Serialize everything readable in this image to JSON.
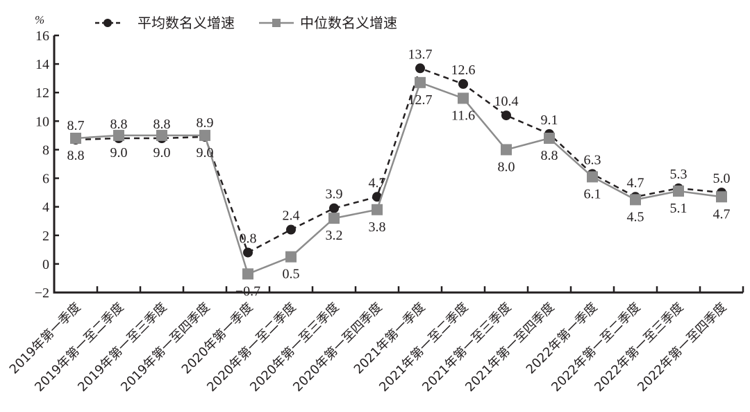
{
  "chart_data": {
    "type": "line",
    "title": "",
    "xlabel": "",
    "ylabel": "%",
    "ylim": [
      -2,
      16
    ],
    "yticks": [
      -2,
      0,
      2,
      4,
      6,
      8,
      10,
      12,
      14,
      16
    ],
    "grid": false,
    "legend_position": "top",
    "categories": [
      "2019年第一季度",
      "2019年第一至二季度",
      "2019年第一至三季度",
      "2019年第一至四季度",
      "2020年第一季度",
      "2020年第一至二季度",
      "2020年第一至三季度",
      "2020年第一至四季度",
      "2021年第一季度",
      "2021年第一至二季度",
      "2021年第一至三季度",
      "2021年第一至四季度",
      "2022年第一季度",
      "2022年第一至二季度",
      "2022年第一至三季度",
      "2022年第一至四季度"
    ],
    "series": [
      {
        "name": "平均数名义增速",
        "style": "dashed",
        "marker": "circle",
        "color": "#231f20",
        "label_position": [
          "above",
          "above",
          "above",
          "above",
          "above",
          "above",
          "above",
          "above",
          "above",
          "above",
          "above",
          "above",
          "above",
          "above",
          "above",
          "above"
        ],
        "values": [
          8.7,
          8.8,
          8.8,
          8.9,
          0.8,
          2.4,
          3.9,
          4.7,
          13.7,
          12.6,
          10.4,
          9.1,
          6.3,
          4.7,
          5.3,
          5.0
        ]
      },
      {
        "name": "中位数名义增速",
        "style": "solid",
        "marker": "square",
        "color": "#8c8c8c",
        "label_position": [
          "below",
          "below",
          "below",
          "below",
          "below",
          "below",
          "below",
          "below",
          "below",
          "below",
          "below",
          "below",
          "below",
          "below",
          "below",
          "below"
        ],
        "values": [
          8.8,
          9.0,
          9.0,
          9.0,
          -0.7,
          0.5,
          3.2,
          3.8,
          12.7,
          11.6,
          8.0,
          8.8,
          6.1,
          4.5,
          5.1,
          4.7
        ]
      }
    ]
  },
  "axis": {
    "y_unit": "%",
    "color": "#231f20"
  },
  "legend": {
    "items": [
      {
        "label": "平均数名义增速",
        "icon": "dashed-line-circle-marker"
      },
      {
        "label": "中位数名义增速",
        "icon": "solid-line-square-marker"
      }
    ]
  }
}
